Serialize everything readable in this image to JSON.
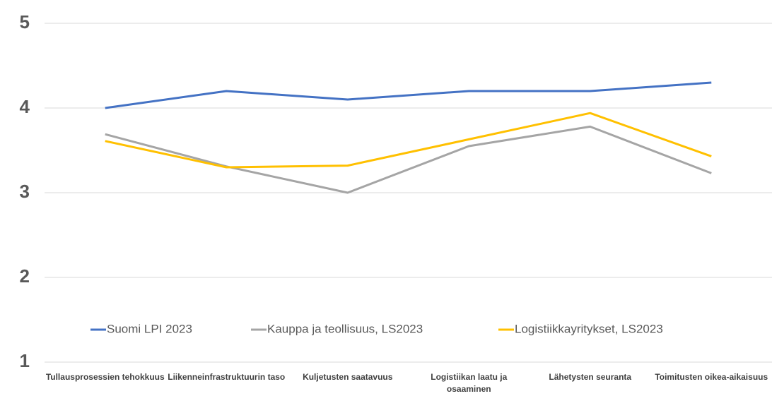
{
  "chart_data": {
    "type": "line",
    "categories": [
      "Tullausprosessien tehokkuus",
      "Liikenneinfrastruktuurin taso",
      "Kuljetusten saatavuus",
      "Logistiikan laatu ja osaaminen",
      "Lähetysten seuranta",
      "Toimitusten oikea-aikaisuus"
    ],
    "series": [
      {
        "name": "Suomi LPI 2023",
        "color": "#4472c4",
        "values": [
          4.0,
          4.2,
          4.1,
          4.2,
          4.2,
          4.3
        ]
      },
      {
        "name": "Kauppa ja teollisuus, LS2023",
        "color": "#a5a5a5",
        "values": [
          3.69,
          3.31,
          3.0,
          3.55,
          3.78,
          3.23
        ]
      },
      {
        "name": "Logistiikkayritykset, LS2023",
        "color": "#ffc000",
        "values": [
          3.61,
          3.3,
          3.32,
          3.63,
          3.94,
          3.43
        ]
      }
    ],
    "ylim": [
      1,
      5
    ],
    "yticks": [
      1,
      2,
      3,
      4,
      5
    ],
    "grid": true,
    "legend": "bottom"
  }
}
